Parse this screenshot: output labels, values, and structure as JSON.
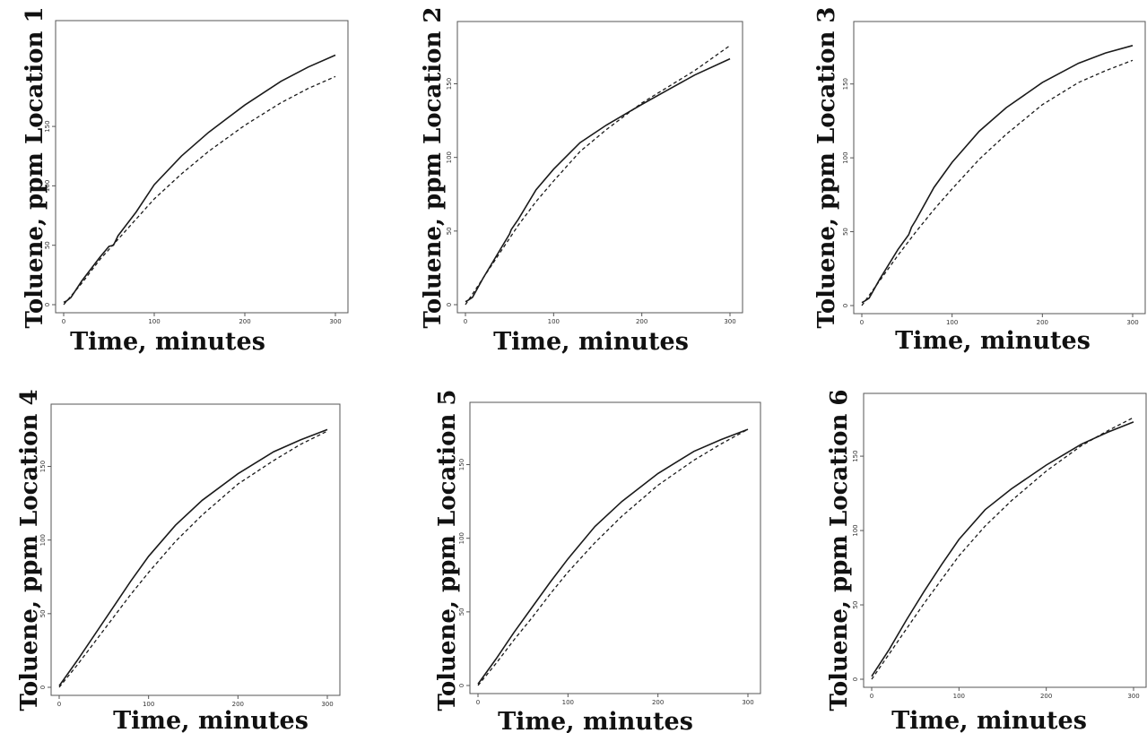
{
  "chart_data": [
    {
      "type": "line",
      "ylabel": "Toluene, ppm Location 1",
      "xlabel": "Time, minutes",
      "xlim": [
        0,
        300
      ],
      "ylim": [
        0,
        230
      ],
      "xticks": [
        "0",
        "100",
        "200",
        "300"
      ],
      "yticks": [
        "0",
        "50",
        "100",
        "150"
      ],
      "series": [
        {
          "style": "solid",
          "x": [
            0,
            3,
            8,
            20,
            40,
            50,
            55,
            60,
            80,
            100,
            130,
            160,
            200,
            240,
            270,
            300
          ],
          "y": [
            2,
            3,
            6,
            20,
            40,
            49,
            50,
            58,
            78,
            101,
            125,
            145,
            168,
            188,
            200,
            210
          ]
        },
        {
          "style": "dashed",
          "x": [
            0,
            20,
            40,
            60,
            80,
            100,
            130,
            160,
            200,
            240,
            270,
            300
          ],
          "y": [
            0,
            18,
            38,
            55,
            72,
            89,
            110,
            129,
            151,
            170,
            182,
            192
          ]
        }
      ]
    },
    {
      "type": "line",
      "ylabel": "Toluene, ppm Location 2",
      "xlabel": "Time, minutes",
      "xlim": [
        0,
        300
      ],
      "ylim": [
        0,
        185
      ],
      "xticks": [
        "0",
        "100",
        "200",
        "300"
      ],
      "yticks": [
        "0",
        "50",
        "100",
        "150"
      ],
      "series": [
        {
          "style": "solid",
          "x": [
            0,
            3,
            8,
            20,
            40,
            50,
            52,
            60,
            80,
            100,
            130,
            160,
            200,
            230,
            260,
            300
          ],
          "y": [
            2,
            3,
            5,
            18,
            38,
            48,
            51,
            58,
            78,
            92,
            110,
            122,
            136,
            146,
            156,
            167
          ]
        },
        {
          "style": "dashed",
          "x": [
            0,
            20,
            40,
            60,
            80,
            100,
            130,
            160,
            200,
            230,
            260,
            300
          ],
          "y": [
            0,
            18,
            36,
            54,
            70,
            84,
            104,
            119,
            137,
            148,
            159,
            176
          ]
        }
      ]
    },
    {
      "type": "line",
      "ylabel": "Toluene, ppm Location 3",
      "xlabel": "Time, minutes",
      "xlim": [
        0,
        300
      ],
      "ylim": [
        0,
        185
      ],
      "xticks": [
        "0",
        "100",
        "200",
        "300"
      ],
      "yticks": [
        "0",
        "50",
        "100",
        "150"
      ],
      "series": [
        {
          "style": "solid",
          "x": [
            0,
            3,
            8,
            20,
            40,
            52,
            55,
            60,
            80,
            100,
            130,
            160,
            200,
            240,
            270,
            300
          ],
          "y": [
            2,
            3,
            5,
            18,
            38,
            48,
            53,
            58,
            80,
            97,
            118,
            134,
            151,
            164,
            171,
            176
          ]
        },
        {
          "style": "dashed",
          "x": [
            0,
            20,
            40,
            60,
            80,
            100,
            130,
            160,
            200,
            240,
            270,
            300
          ],
          "y": [
            0,
            17,
            34,
            50,
            65,
            79,
            99,
            116,
            136,
            151,
            159,
            166
          ]
        }
      ]
    },
    {
      "type": "line",
      "ylabel": "Toluene, ppm Location 4",
      "xlabel": "Time, minutes",
      "xlim": [
        0,
        300
      ],
      "ylim": [
        0,
        185
      ],
      "xticks": [
        "0",
        "100",
        "200",
        "300"
      ],
      "yticks": [
        "0",
        "50",
        "100",
        "150"
      ],
      "series": [
        {
          "style": "solid",
          "x": [
            0,
            20,
            40,
            60,
            80,
            100,
            130,
            160,
            200,
            240,
            270,
            300
          ],
          "y": [
            1,
            18,
            36,
            54,
            72,
            89,
            110,
            127,
            145,
            160,
            168,
            175
          ]
        },
        {
          "style": "dashed",
          "x": [
            0,
            20,
            40,
            60,
            80,
            100,
            130,
            160,
            200,
            240,
            270,
            300
          ],
          "y": [
            0,
            15,
            31,
            47,
            63,
            78,
            99,
            117,
            138,
            154,
            165,
            174
          ]
        }
      ]
    },
    {
      "type": "line",
      "ylabel": "Toluene, ppm Location 5",
      "xlabel": "Time, minutes",
      "xlim": [
        0,
        300
      ],
      "ylim": [
        0,
        185
      ],
      "xticks": [
        "0",
        "100",
        "200",
        "300"
      ],
      "yticks": [
        "0",
        "50",
        "100",
        "150"
      ],
      "series": [
        {
          "style": "solid",
          "x": [
            0,
            20,
            40,
            60,
            80,
            100,
            130,
            160,
            200,
            240,
            270,
            300
          ],
          "y": [
            1,
            18,
            36,
            53,
            70,
            86,
            108,
            125,
            144,
            159,
            167,
            174
          ]
        },
        {
          "style": "dashed",
          "x": [
            0,
            20,
            40,
            60,
            80,
            100,
            130,
            160,
            200,
            240,
            270,
            300
          ],
          "y": [
            0,
            15,
            31,
            46,
            62,
            77,
            97,
            115,
            136,
            153,
            164,
            174
          ]
        }
      ]
    },
    {
      "type": "line",
      "ylabel": "Toluene, ppm Location 6",
      "xlabel": "Time, minutes",
      "xlim": [
        0,
        300
      ],
      "ylim": [
        0,
        185
      ],
      "xticks": [
        "0",
        "100",
        "200",
        "300"
      ],
      "yticks": [
        "0",
        "50",
        "100",
        "150"
      ],
      "series": [
        {
          "style": "solid",
          "x": [
            0,
            20,
            40,
            60,
            80,
            100,
            130,
            160,
            200,
            240,
            270,
            300
          ],
          "y": [
            2,
            20,
            40,
            59,
            77,
            94,
            114,
            128,
            144,
            158,
            166,
            173
          ]
        },
        {
          "style": "dashed",
          "x": [
            0,
            20,
            40,
            60,
            80,
            100,
            130,
            160,
            200,
            240,
            270,
            300
          ],
          "y": [
            0,
            17,
            34,
            51,
            67,
            83,
            103,
            120,
            140,
            157,
            167,
            176
          ]
        }
      ]
    }
  ]
}
